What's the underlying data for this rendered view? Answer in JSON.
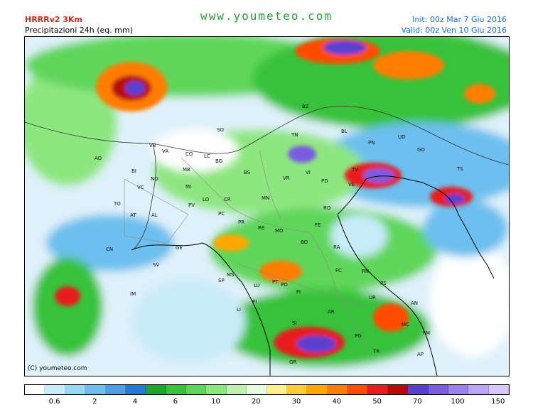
{
  "header": {
    "model": "HRRRv2 3Km",
    "product": "Precipitazioni 24h (eq. mm)",
    "site": "www.youmeteo.com",
    "init": "Init: 00z Mar  7  Giu 2016",
    "valid": "Valid: 00z Ven  10 Giu 2016"
  },
  "map": {
    "copyright": "(C) youmeteo.com",
    "cities": [
      "BZ",
      "TN",
      "BL",
      "UD",
      "PN",
      "GO",
      "TS",
      "VB",
      "VA",
      "CO",
      "LC",
      "SO",
      "BG",
      "MB",
      "MI",
      "NO",
      "BI",
      "AO",
      "VC",
      "TO",
      "AT",
      "AL",
      "PV",
      "LO",
      "CR",
      "PC",
      "BS",
      "VR",
      "VI",
      "TV",
      "PD",
      "VE",
      "RO",
      "FE",
      "MN",
      "PR",
      "RE",
      "MO",
      "BO",
      "RA",
      "FC",
      "RN",
      "PS",
      "AN",
      "MC",
      "FM",
      "AP",
      "CN",
      "SV",
      "GE",
      "SP",
      "MS",
      "LU",
      "PT",
      "PO",
      "FI",
      "PI",
      "LI",
      "AR",
      "SI",
      "GR",
      "PG",
      "TR",
      "UR",
      "IM"
    ]
  },
  "legend": {
    "colors": [
      "#ffffff",
      "#c9ecfa",
      "#9ad8f4",
      "#6cbfee",
      "#4a9fe6",
      "#2478d8",
      "#1ba62a",
      "#38c23a",
      "#5ed65a",
      "#8ee680",
      "#bff2b0",
      "#e6fbe0",
      "#fff088",
      "#ffcc33",
      "#ffa700",
      "#ff7d00",
      "#ff4c00",
      "#e81c1c",
      "#b80808",
      "#5a3fd0",
      "#7a5ce2",
      "#9a80f0",
      "#b9a6f8",
      "#d8c8ff"
    ],
    "labels": [
      "0.6",
      "2",
      "4",
      "6",
      "10",
      "20",
      "30",
      "40",
      "50",
      "70",
      "100",
      "150"
    ]
  }
}
